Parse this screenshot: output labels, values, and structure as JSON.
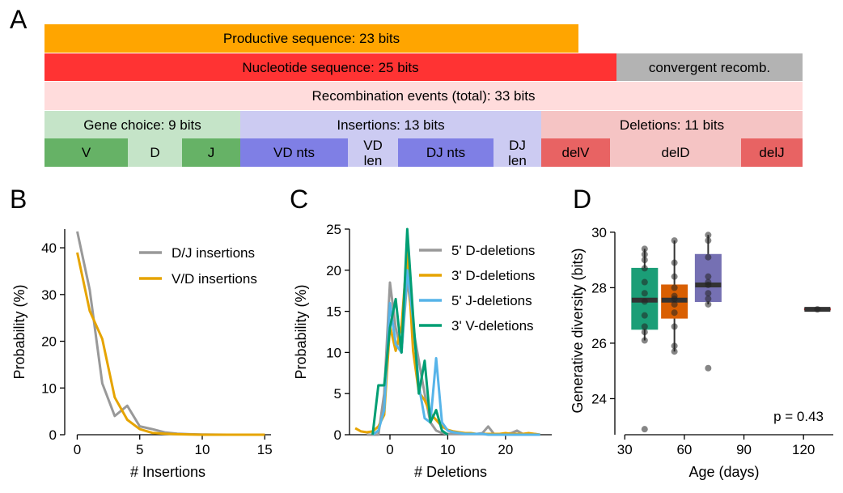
{
  "panel_letters": {
    "a": "A",
    "b": "B",
    "c": "C",
    "d": "D"
  },
  "panel_a": {
    "productive": "Productive sequence: 23 bits",
    "nucleotide": "Nucleotide sequence: 25 bits",
    "convergent": "convergent recomb.",
    "recombination": "Recombination events (total): 33 bits",
    "gene_choice": "Gene choice: 9 bits",
    "insertions": "Insertions: 13 bits",
    "deletions": "Deletions: 11 bits",
    "v": "V",
    "d": "D",
    "j": "J",
    "vd_nts": "VD nts",
    "vd_len": "VD\nlen",
    "dj_nts": "DJ nts",
    "dj_len": "DJ\nlen",
    "delv": "delV",
    "deld": "delD",
    "delj": "delJ",
    "colors": {
      "productive": "#ffa500",
      "nucleotide": "#ff3333",
      "convergent": "#b3b3b3",
      "recombination": "#ffdcdc",
      "gene_choice": "#c5e4c8",
      "gene_segment": "#66b266",
      "insertions": "#cccbf2",
      "ins_segment": "#7f7fe5",
      "deletions": "#f5c4c4",
      "del_segment": "#e86363"
    }
  },
  "chart_data": [
    {
      "type": "line",
      "xlabel": "# Insertions",
      "ylabel": "Probability (%)",
      "xlim": [
        -1,
        15.5
      ],
      "ylim": [
        0,
        44
      ],
      "xticks": [
        0,
        5,
        10,
        15
      ],
      "yticks": [
        0,
        10,
        20,
        30,
        40
      ],
      "legend_position": "top-right",
      "series": [
        {
          "name": "D/J insertions",
          "color": "#999999",
          "x": [
            0,
            1,
            2,
            3,
            4,
            5,
            6,
            7,
            8,
            9,
            10,
            11,
            12,
            13,
            14,
            15
          ],
          "y": [
            43.5,
            31,
            11,
            4,
            6.2,
            1.8,
            1.2,
            0.5,
            0.2,
            0.1,
            0.05,
            0.02,
            0,
            0,
            0,
            0
          ]
        },
        {
          "name": "V/D insertions",
          "color": "#e6a400",
          "x": [
            0,
            1,
            2,
            3,
            4,
            5,
            6,
            7,
            8,
            9,
            10,
            11,
            12,
            13,
            14,
            15
          ],
          "y": [
            39,
            26.5,
            20.5,
            8,
            3.2,
            1.2,
            0.4,
            0.2,
            0.1,
            0.05,
            0,
            0,
            0,
            0,
            0,
            0
          ]
        }
      ]
    },
    {
      "type": "line",
      "xlabel": "# Deletions",
      "ylabel": "Probability (%)",
      "xlim": [
        -7,
        28
      ],
      "ylim": [
        0,
        25
      ],
      "xticks": [
        0,
        10,
        20
      ],
      "yticks": [
        0,
        5,
        10,
        15,
        20,
        25
      ],
      "legend_position": "top-right",
      "series": [
        {
          "name": "5' D-deletions",
          "color": "#999999",
          "x": [
            -4,
            -3,
            -2,
            -1,
            0,
            1,
            2,
            3,
            4,
            5,
            6,
            7,
            8,
            9,
            10,
            11,
            12,
            13,
            14,
            15,
            16,
            17,
            18,
            19,
            20,
            21,
            22,
            23,
            24,
            25,
            26
          ],
          "y": [
            0,
            0,
            0,
            5,
            18.5,
            13,
            10,
            19,
            13,
            9,
            5,
            1.5,
            0.5,
            0.2,
            0.1,
            0.1,
            0.1,
            0.1,
            0.1,
            0.1,
            0.2,
            1,
            0.1,
            0.1,
            0.1,
            0.2,
            0.5,
            0.1,
            0.1,
            0.1,
            0
          ]
        },
        {
          "name": "3' D-deletions",
          "color": "#e6a400",
          "x": [
            -6,
            -5,
            -4,
            -3,
            -2,
            -1,
            0,
            1,
            2,
            3,
            4,
            5,
            6,
            7,
            8,
            9,
            10,
            11,
            12,
            13,
            14,
            15,
            16,
            17,
            18,
            19,
            20,
            21,
            22,
            23,
            24,
            25,
            26
          ],
          "y": [
            0.8,
            0.4,
            0.3,
            0.4,
            1,
            2.4,
            13.2,
            10.2,
            13.2,
            22.3,
            10.2,
            5.2,
            4.2,
            2.6,
            1.8,
            1,
            0.6,
            0.4,
            0.3,
            0.2,
            0.2,
            0.1,
            0.1,
            0.1,
            0.1,
            0.1,
            0.2,
            0.1,
            0.1,
            0.1,
            0.2,
            0.1,
            0
          ]
        },
        {
          "name": "5' J-deletions",
          "color": "#56b4e9",
          "x": [
            -3,
            -2,
            -1,
            0,
            1,
            2,
            3,
            4,
            5,
            6,
            7,
            8,
            9,
            10,
            11,
            12,
            13,
            14,
            15,
            16,
            17,
            18,
            19,
            20,
            21,
            22,
            23,
            24,
            25,
            26
          ],
          "y": [
            0,
            0.5,
            3,
            16,
            11,
            10,
            20,
            14,
            6,
            2,
            1.5,
            9.3,
            1.5,
            0.5,
            0.3,
            0.2,
            0.1,
            0.1,
            0.1,
            0.1,
            0,
            0,
            0,
            0,
            0,
            0,
            0,
            0,
            0,
            0
          ]
        },
        {
          "name": "3' V-deletions",
          "color": "#009e73",
          "x": [
            -3,
            -2,
            -1,
            0,
            1,
            2,
            3,
            4,
            5,
            6,
            7,
            8,
            9,
            10
          ],
          "y": [
            0,
            6,
            6,
            13,
            16.5,
            10,
            25,
            14.5,
            5,
            9,
            1.5,
            3,
            0.5,
            0
          ]
        }
      ]
    },
    {
      "type": "box",
      "xlabel": "Age (days)",
      "ylabel": "Generative diversity (bits)",
      "xlim": [
        25,
        135
      ],
      "ylim": [
        22.7,
        30.2
      ],
      "xticks": [
        30,
        60,
        90,
        120
      ],
      "yticks": [
        24,
        26,
        28,
        30
      ],
      "annotation": "p = 0.43",
      "boxes": [
        {
          "x": 40,
          "color": "#1b9e77",
          "q1": 26.5,
          "median": 27.55,
          "q3": 28.7,
          "whisker_low": 26.1,
          "whisker_high": 29.4,
          "points": [
            22.9,
            26.1,
            26.4,
            26.6,
            27.0,
            27.5,
            27.8,
            28.2,
            28.7,
            29.0,
            29.2,
            29.4
          ]
        },
        {
          "x": 55,
          "color": "#d95f02",
          "q1": 26.9,
          "median": 27.55,
          "q3": 28.1,
          "whisker_low": 25.7,
          "whisker_high": 29.7,
          "points": [
            25.7,
            25.9,
            26.6,
            27.1,
            27.4,
            27.6,
            27.7,
            28.0,
            28.4,
            28.9,
            29.7
          ]
        },
        {
          "x": 72,
          "color": "#7570b3",
          "q1": 27.5,
          "median": 28.1,
          "q3": 29.2,
          "whisker_low": 27.4,
          "whisker_high": 29.9,
          "points": [
            25.1,
            27.4,
            27.6,
            27.8,
            28.1,
            28.2,
            28.4,
            29.1,
            29.7,
            29.9
          ]
        },
        {
          "x": 127,
          "color": "#e41a1c",
          "q1": 27.2,
          "median": 27.22,
          "q3": 27.25,
          "whisker_low": 27.2,
          "whisker_high": 27.25,
          "points": [
            27.22
          ]
        }
      ]
    }
  ]
}
